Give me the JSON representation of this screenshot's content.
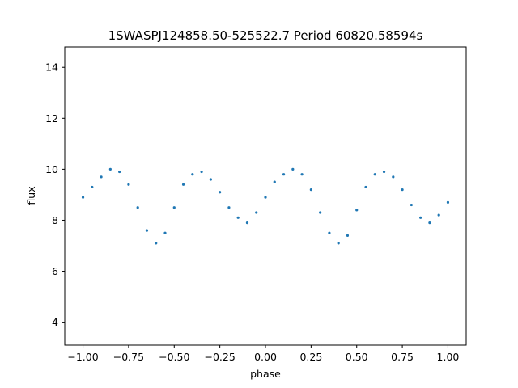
{
  "chart_data": {
    "type": "scatter",
    "title": "1SWASPJ124858.50-525522.7 Period 60820.58594s",
    "xlabel": "phase",
    "ylabel": "flux",
    "xlim": [
      -1.1,
      1.1
    ],
    "ylim": [
      3.1,
      14.8
    ],
    "xticks": [
      -1.0,
      -0.75,
      -0.5,
      -0.25,
      0.0,
      0.25,
      0.5,
      0.75,
      1.0
    ],
    "xtick_labels": [
      "−1.00",
      "−0.75",
      "−0.50",
      "−0.25",
      "0.00",
      "0.25",
      "0.50",
      "0.75",
      "1.00"
    ],
    "yticks": [
      4,
      6,
      8,
      10,
      12,
      14
    ],
    "ytick_labels": [
      "4",
      "6",
      "8",
      "10",
      "12",
      "14"
    ],
    "grid": false,
    "marker_color": "#1f77b4",
    "series": [
      {
        "x": [
          -1.0,
          -0.95,
          -0.9,
          -0.85,
          -0.8,
          -0.75,
          -0.7,
          -0.65,
          -0.6,
          -0.55,
          -0.5,
          -0.45,
          -0.4,
          -0.35,
          -0.3,
          -0.25,
          -0.2,
          -0.15,
          -0.1,
          -0.05,
          0.0,
          0.05,
          0.1,
          0.15,
          0.2,
          0.25,
          0.3,
          0.35,
          0.4,
          0.45,
          0.5,
          0.55,
          0.6,
          0.65,
          0.7,
          0.75,
          0.8,
          0.85,
          0.9,
          0.95,
          1.0
        ],
        "y": [
          8.9,
          9.3,
          9.7,
          10.0,
          9.9,
          9.4,
          8.5,
          7.6,
          7.1,
          7.5,
          8.5,
          9.4,
          9.8,
          9.9,
          9.6,
          9.1,
          8.5,
          8.1,
          7.9,
          8.3,
          8.9,
          9.5,
          9.8,
          10.0,
          9.8,
          9.2,
          8.3,
          7.5,
          7.1,
          7.4,
          8.4,
          9.3,
          9.8,
          9.9,
          9.7,
          9.2,
          8.6,
          8.1,
          7.9,
          8.2,
          8.7
        ]
      }
    ]
  }
}
